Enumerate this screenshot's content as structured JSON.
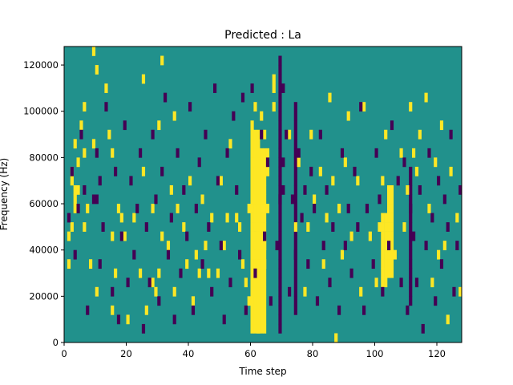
{
  "chart_data": {
    "type": "heatmap",
    "title": "Predicted : La",
    "xlabel": "Time step",
    "ylabel": "Frequency (Hz)",
    "xlim": [
      0,
      128
    ],
    "ylim": [
      0,
      128000
    ],
    "xticks": [
      0,
      20,
      40,
      60,
      80,
      100,
      120
    ],
    "yticks": [
      0,
      20000,
      40000,
      60000,
      80000,
      100000,
      120000
    ],
    "xtick_labels": [
      "0",
      "20",
      "40",
      "60",
      "80",
      "100",
      "120"
    ],
    "ytick_labels": [
      "0",
      "20000",
      "40000",
      "60000",
      "80000",
      "100000",
      "120000"
    ],
    "grid": false,
    "legend": "none",
    "colors": {
      "background": "#21918c",
      "high": "#fde725",
      "low": "#440154"
    },
    "cell_width_steps": 1,
    "cell_height_hz": 4000,
    "high_cells": [
      [
        1,
        8
      ],
      [
        1,
        11
      ],
      [
        2,
        12
      ],
      [
        2,
        17
      ],
      [
        2,
        18
      ],
      [
        3,
        14
      ],
      [
        3,
        15
      ],
      [
        3,
        16
      ],
      [
        3,
        21
      ],
      [
        4,
        16
      ],
      [
        4,
        19
      ],
      [
        5,
        23
      ],
      [
        6,
        12
      ],
      [
        6,
        20
      ],
      [
        6,
        25
      ],
      [
        7,
        14
      ],
      [
        8,
        8
      ],
      [
        9,
        21
      ],
      [
        9,
        31
      ],
      [
        10,
        5
      ],
      [
        10,
        29
      ],
      [
        13,
        27
      ],
      [
        14,
        22
      ],
      [
        15,
        3
      ],
      [
        15,
        11
      ],
      [
        15,
        20
      ],
      [
        16,
        7
      ],
      [
        17,
        14
      ],
      [
        18,
        13
      ],
      [
        19,
        11
      ],
      [
        20,
        2
      ],
      [
        22,
        13
      ],
      [
        24,
        7
      ],
      [
        25,
        18
      ],
      [
        25,
        28
      ],
      [
        26,
        3
      ],
      [
        28,
        6
      ],
      [
        28,
        14
      ],
      [
        29,
        5
      ],
      [
        30,
        7
      ],
      [
        30,
        23
      ],
      [
        31,
        11
      ],
      [
        31,
        30
      ],
      [
        33,
        10
      ],
      [
        34,
        16
      ],
      [
        35,
        5
      ],
      [
        35,
        24
      ],
      [
        36,
        14
      ],
      [
        38,
        12
      ],
      [
        39,
        8
      ],
      [
        40,
        17
      ],
      [
        41,
        4
      ],
      [
        42,
        9
      ],
      [
        43,
        7
      ],
      [
        44,
        15
      ],
      [
        45,
        10
      ],
      [
        46,
        7
      ],
      [
        47,
        13
      ],
      [
        49,
        7
      ],
      [
        50,
        17
      ],
      [
        51,
        10
      ],
      [
        52,
        13
      ],
      [
        53,
        21
      ],
      [
        55,
        13
      ],
      [
        56,
        12
      ],
      [
        57,
        8
      ],
      [
        58,
        6
      ],
      [
        59,
        4
      ],
      [
        59,
        14
      ],
      [
        60,
        5
      ],
      [
        60,
        9
      ],
      [
        60,
        11
      ],
      [
        60,
        15
      ],
      [
        60,
        19
      ],
      [
        60,
        23
      ],
      [
        61,
        13
      ],
      [
        61,
        16
      ],
      [
        61,
        18
      ],
      [
        61,
        20
      ],
      [
        61,
        25
      ],
      [
        63,
        12
      ],
      [
        63,
        15
      ],
      [
        63,
        17
      ],
      [
        63,
        24
      ],
      [
        64,
        8
      ],
      [
        64,
        10
      ],
      [
        64,
        22
      ],
      [
        65,
        14
      ],
      [
        65,
        18
      ],
      [
        65,
        20
      ],
      [
        67,
        25
      ],
      [
        67,
        27
      ],
      [
        67,
        28
      ],
      [
        72,
        22
      ],
      [
        74,
        12
      ],
      [
        75,
        19
      ],
      [
        77,
        5
      ],
      [
        78,
        12
      ],
      [
        79,
        22
      ],
      [
        80,
        15
      ],
      [
        82,
        18
      ],
      [
        83,
        8
      ],
      [
        84,
        13
      ],
      [
        85,
        26
      ],
      [
        86,
        17
      ],
      [
        87,
        0
      ],
      [
        88,
        14
      ],
      [
        89,
        9
      ],
      [
        90,
        19
      ],
      [
        91,
        24
      ],
      [
        92,
        11
      ],
      [
        94,
        17
      ],
      [
        95,
        5
      ],
      [
        96,
        25
      ],
      [
        98,
        11
      ],
      [
        100,
        6
      ],
      [
        101,
        12
      ],
      [
        102,
        17
      ],
      [
        103,
        22
      ],
      [
        106,
        9
      ],
      [
        108,
        20
      ],
      [
        109,
        12
      ],
      [
        110,
        16
      ],
      [
        111,
        25
      ],
      [
        112,
        20
      ],
      [
        113,
        18
      ],
      [
        114,
        22
      ],
      [
        116,
        26
      ],
      [
        117,
        14
      ],
      [
        118,
        6
      ],
      [
        119,
        19
      ],
      [
        120,
        9
      ],
      [
        121,
        23
      ],
      [
        122,
        10
      ],
      [
        123,
        2
      ],
      [
        124,
        18
      ],
      [
        126,
        13
      ],
      [
        127,
        5
      ]
    ],
    "low_cells": [
      [
        1,
        13
      ],
      [
        2,
        18
      ],
      [
        3,
        9
      ],
      [
        4,
        14
      ],
      [
        5,
        22
      ],
      [
        6,
        16
      ],
      [
        7,
        3
      ],
      [
        9,
        15
      ],
      [
        10,
        15
      ],
      [
        10,
        20
      ],
      [
        11,
        8
      ],
      [
        11,
        17
      ],
      [
        12,
        12
      ],
      [
        13,
        25
      ],
      [
        15,
        5
      ],
      [
        16,
        18
      ],
      [
        17,
        2
      ],
      [
        18,
        11
      ],
      [
        19,
        23
      ],
      [
        20,
        6
      ],
      [
        21,
        17
      ],
      [
        22,
        9
      ],
      [
        23,
        14
      ],
      [
        24,
        20
      ],
      [
        25,
        1
      ],
      [
        26,
        12
      ],
      [
        27,
        6
      ],
      [
        28,
        22
      ],
      [
        29,
        15
      ],
      [
        30,
        4
      ],
      [
        31,
        18
      ],
      [
        32,
        26
      ],
      [
        33,
        9
      ],
      [
        34,
        13
      ],
      [
        35,
        2
      ],
      [
        36,
        20
      ],
      [
        37,
        7
      ],
      [
        38,
        16
      ],
      [
        39,
        11
      ],
      [
        40,
        25
      ],
      [
        41,
        3
      ],
      [
        42,
        14
      ],
      [
        43,
        19
      ],
      [
        44,
        8
      ],
      [
        45,
        22
      ],
      [
        46,
        12
      ],
      [
        47,
        5
      ],
      [
        48,
        27
      ],
      [
        49,
        17
      ],
      [
        50,
        10
      ],
      [
        51,
        2
      ],
      [
        52,
        20
      ],
      [
        53,
        6
      ],
      [
        54,
        24
      ],
      [
        55,
        16
      ],
      [
        56,
        9
      ],
      [
        57,
        26
      ],
      [
        58,
        3
      ],
      [
        60,
        27
      ],
      [
        61,
        7
      ],
      [
        63,
        22
      ],
      [
        64,
        11
      ],
      [
        65,
        19
      ],
      [
        66,
        4
      ],
      [
        68,
        10
      ],
      [
        69,
        15
      ],
      [
        70,
        16
      ],
      [
        70,
        19
      ],
      [
        70,
        27
      ],
      [
        71,
        22
      ],
      [
        72,
        5
      ],
      [
        73,
        15
      ],
      [
        74,
        9
      ],
      [
        75,
        20
      ],
      [
        76,
        13
      ],
      [
        77,
        16
      ],
      [
        78,
        8
      ],
      [
        79,
        18
      ],
      [
        80,
        14
      ],
      [
        81,
        4
      ],
      [
        82,
        22
      ],
      [
        83,
        10
      ],
      [
        84,
        16
      ],
      [
        85,
        6
      ],
      [
        86,
        12
      ],
      [
        88,
        3
      ],
      [
        89,
        20
      ],
      [
        90,
        10
      ],
      [
        91,
        14
      ],
      [
        92,
        7
      ],
      [
        93,
        18
      ],
      [
        94,
        12
      ],
      [
        95,
        25
      ],
      [
        96,
        3
      ],
      [
        97,
        14
      ],
      [
        99,
        8
      ],
      [
        100,
        20
      ],
      [
        101,
        15
      ],
      [
        102,
        5
      ],
      [
        104,
        10
      ],
      [
        105,
        23
      ],
      [
        107,
        17
      ],
      [
        108,
        6
      ],
      [
        109,
        19
      ],
      [
        110,
        3
      ],
      [
        111,
        14
      ],
      [
        112,
        11
      ],
      [
        113,
        6
      ],
      [
        114,
        16
      ],
      [
        115,
        1
      ],
      [
        116,
        10
      ],
      [
        117,
        20
      ],
      [
        118,
        13
      ],
      [
        119,
        4
      ],
      [
        120,
        17
      ],
      [
        121,
        8
      ],
      [
        122,
        15
      ],
      [
        123,
        12
      ],
      [
        124,
        22
      ],
      [
        125,
        5
      ],
      [
        126,
        10
      ],
      [
        127,
        16
      ]
    ],
    "high_bands": [
      {
        "x": [
          60,
          63
        ],
        "y_from": 1,
        "y_to": 22
      },
      {
        "x": [
          62,
          65
        ],
        "y_from": 1,
        "y_to": 20
      },
      {
        "x": [
          104,
          106
        ],
        "y_from": 7,
        "y_to": 16
      },
      {
        "x": [
          102,
          104
        ],
        "y_from": 6,
        "y_to": 13
      }
    ],
    "low_bands": [
      {
        "x": [
          69,
          70
        ],
        "y_from": 1,
        "y_to": 30
      },
      {
        "x": [
          74,
          75
        ],
        "y_from": 3,
        "y_to": 25
      },
      {
        "x": [
          111,
          112
        ],
        "y_from": 4,
        "y_to": 18
      }
    ]
  }
}
